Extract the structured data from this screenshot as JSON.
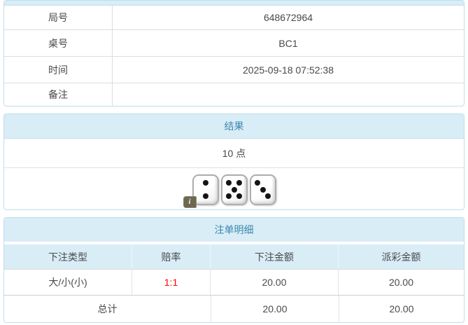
{
  "info_table": {
    "rows": [
      {
        "label": "局号",
        "value": "648672964"
      },
      {
        "label": "桌号",
        "value": "BC1"
      },
      {
        "label": "时间",
        "value": "2025-09-18 07:52:38"
      },
      {
        "label": "备注",
        "value": ""
      }
    ]
  },
  "result": {
    "title": "结果",
    "points": "10 点",
    "dice": [
      2,
      5,
      3
    ],
    "info_icon_glyph": "i"
  },
  "bets": {
    "title": "注单明细",
    "columns": [
      "下注类型",
      "赔率",
      "下注金额",
      "派彩金额"
    ],
    "rows": [
      {
        "type": "大/小(小)",
        "odds": "1:1",
        "bet_amount": "20.00",
        "payout_amount": "20.00"
      }
    ],
    "total": {
      "label": "总计",
      "bet_amount": "20.00",
      "payout_amount": "20.00"
    }
  },
  "colors": {
    "accent_blue_text": "#3a87ad",
    "heading_bg": "#d9edf7",
    "panel_border": "#bfdeed",
    "odds_red": "#ff0000"
  }
}
